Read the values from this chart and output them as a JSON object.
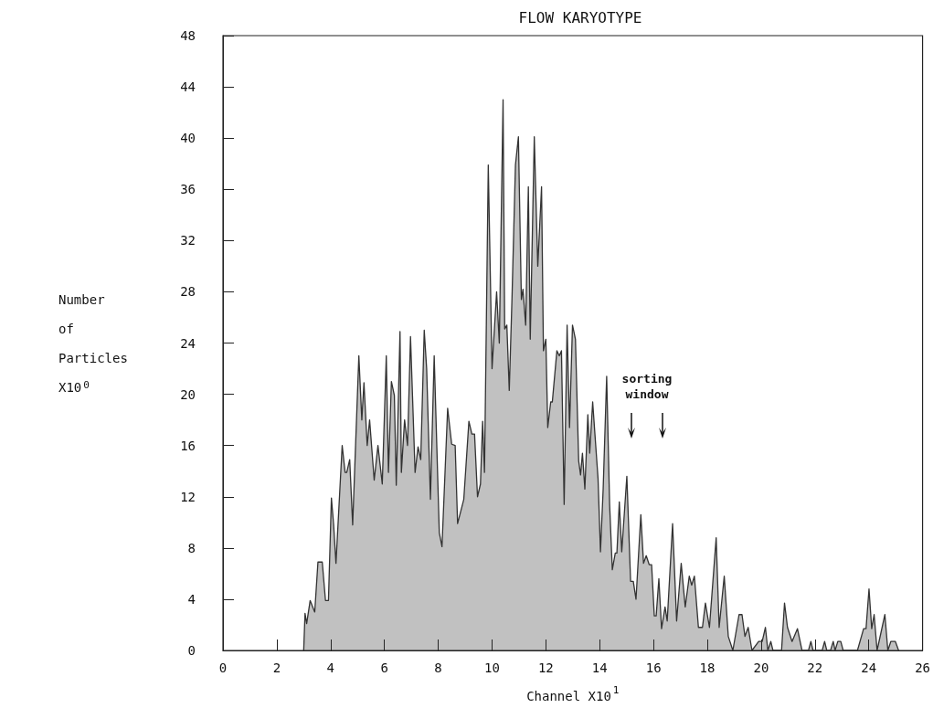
{
  "chart_data": {
    "type": "area",
    "title": "FLOW KARYOTYPE",
    "xlabel": "Channel X10$^{1}$",
    "ylabel": "Number of Particles X10$^{0}$",
    "color": "#333333",
    "x": [
      3.0,
      3.05,
      3.11,
      3.24,
      3.41,
      3.53,
      3.69,
      3.81,
      3.92,
      4.03,
      4.11,
      4.2,
      4.43,
      4.54,
      4.6,
      4.71,
      4.82,
      5.05,
      5.16,
      5.24,
      5.36,
      5.45,
      5.62,
      5.76,
      5.92,
      6.07,
      6.15,
      6.26,
      6.37,
      6.44,
      6.58,
      6.63,
      6.75,
      6.86,
      6.97,
      7.14,
      7.25,
      7.35,
      7.48,
      7.57,
      7.71,
      7.85,
      8.04,
      8.14,
      8.35,
      8.5,
      8.63,
      8.72,
      8.95,
      9.14,
      9.25,
      9.35,
      9.46,
      9.57,
      9.65,
      9.72,
      9.86,
      10.0,
      10.17,
      10.27,
      10.41,
      10.47,
      10.55,
      10.64,
      10.74,
      10.87,
      10.98,
      11.09,
      11.15,
      11.25,
      11.35,
      11.42,
      11.57,
      11.7,
      11.84,
      11.91,
      12.0,
      12.07,
      12.18,
      12.24,
      12.41,
      12.5,
      12.58,
      12.68,
      12.79,
      12.88,
      12.99,
      13.1,
      13.22,
      13.29,
      13.36,
      13.45,
      13.56,
      13.63,
      13.74,
      13.94,
      14.03,
      14.13,
      14.26,
      14.37,
      14.47,
      14.58,
      14.64,
      14.73,
      14.82,
      15.01,
      15.15,
      15.25,
      15.35,
      15.53,
      15.63,
      15.73,
      15.84,
      15.93,
      16.03,
      16.1,
      16.2,
      16.3,
      16.43,
      16.51,
      16.71,
      16.86,
      17.03,
      17.18,
      17.33,
      17.42,
      17.52,
      17.67,
      17.82,
      17.93,
      18.08,
      18.33,
      18.44,
      18.63,
      18.78,
      18.95,
      19.18,
      19.29,
      19.4,
      19.52,
      19.66,
      19.91,
      20.04,
      20.16,
      20.25,
      20.36,
      20.44,
      20.76,
      20.87,
      20.98,
      21.15,
      21.35,
      21.52,
      21.76,
      21.85,
      21.93,
      22.27,
      22.36,
      22.44,
      22.58,
      22.68,
      22.75,
      22.85,
      22.96,
      23.05,
      23.58,
      23.81,
      23.9,
      24.01,
      24.11,
      24.2,
      24.31,
      24.6,
      24.71,
      24.82,
      24.99,
      25.11
    ],
    "values": [
      0,
      2.9,
      2.1,
      3.9,
      3.0,
      6.9,
      6.9,
      3.9,
      3.9,
      11.9,
      9.9,
      6.8,
      16.0,
      13.9,
      13.9,
      14.9,
      9.8,
      23.0,
      18.0,
      20.9,
      16.0,
      18.0,
      13.3,
      16.0,
      13.0,
      23.0,
      13.9,
      21.0,
      19.9,
      12.9,
      24.9,
      13.9,
      18.0,
      16.0,
      24.5,
      13.9,
      15.9,
      14.9,
      25.0,
      22.0,
      11.8,
      23.0,
      9.2,
      8.1,
      18.9,
      16.1,
      16.0,
      9.9,
      11.8,
      17.9,
      16.9,
      16.9,
      12.0,
      13.0,
      17.9,
      13.9,
      37.9,
      22.0,
      28.0,
      24.0,
      43.0,
      25.1,
      25.4,
      20.3,
      27.4,
      37.9,
      40.1,
      27.4,
      28.2,
      25.4,
      36.2,
      24.3,
      40.1,
      30.0,
      36.2,
      23.4,
      24.3,
      17.4,
      19.4,
      19.4,
      23.4,
      23.0,
      23.4,
      11.4,
      25.4,
      17.4,
      25.4,
      24.3,
      14.8,
      13.7,
      15.4,
      12.6,
      18.4,
      15.4,
      19.4,
      13.4,
      7.7,
      12.6,
      21.4,
      11.4,
      6.3,
      7.6,
      7.6,
      11.6,
      7.7,
      13.6,
      5.4,
      5.4,
      4.0,
      10.6,
      6.8,
      7.4,
      6.7,
      6.7,
      2.7,
      2.7,
      5.6,
      1.7,
      3.4,
      2.3,
      9.9,
      2.3,
      6.8,
      3.4,
      5.8,
      5.1,
      5.8,
      1.8,
      1.8,
      3.7,
      1.8,
      8.8,
      1.8,
      5.8,
      1.1,
      0,
      2.8,
      2.8,
      1.1,
      1.8,
      0,
      0.7,
      0.7,
      1.8,
      0,
      0.7,
      0,
      0,
      3.7,
      1.8,
      0.7,
      1.7,
      0,
      0,
      0.7,
      0,
      0,
      0.7,
      0,
      0,
      0.7,
      0,
      0.7,
      0.7,
      0,
      0,
      1.7,
      1.7,
      4.8,
      1.7,
      2.8,
      0,
      2.8,
      0,
      0.7,
      0.7,
      0
    ],
    "xlim": [
      0,
      26
    ],
    "xticks": [
      0,
      2,
      4,
      6,
      8,
      10,
      12,
      14,
      16,
      18,
      20,
      22,
      24,
      26
    ],
    "ylim": [
      0,
      48
    ],
    "yticks": [
      0,
      4,
      8,
      12,
      16,
      20,
      24,
      28,
      32,
      36,
      40,
      44,
      48
    ],
    "annotations": [
      "sorting window"
    ]
  }
}
